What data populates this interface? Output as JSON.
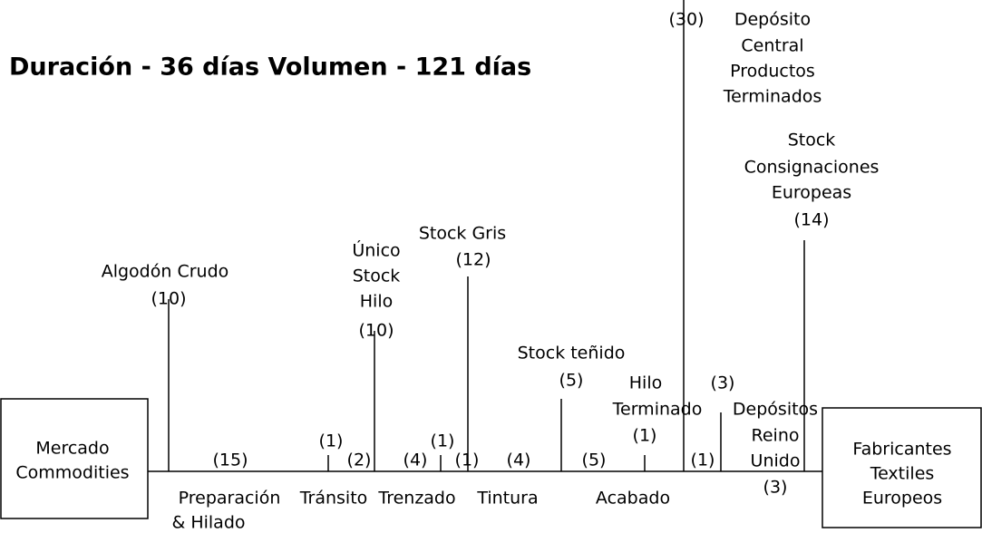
{
  "title": "Duración - 36 días  Volumen - 121 días",
  "source": [
    "Mercado",
    "Commodities"
  ],
  "destination": [
    "Fabricantes",
    "Textiles",
    "Europeos"
  ],
  "stocks": [
    {
      "lines": [
        "Algodón Crudo",
        "(10)"
      ]
    },
    {
      "lines": [
        "Único",
        "Stock",
        "Hilo",
        "(10)"
      ]
    },
    {
      "lines": [
        "Stock Gris",
        "(12)"
      ]
    },
    {
      "lines": [
        "Stock teñido",
        "(5)"
      ]
    },
    {
      "lines": [
        "Hilo",
        "Terminado",
        "(1)"
      ]
    },
    {
      "lines": [
        "(30)",
        "Depósito",
        "Central",
        "Productos",
        "Terminados"
      ]
    },
    {
      "lines": [
        "(3)",
        "Depósitos",
        "Reino",
        "Unido",
        "(3)"
      ]
    },
    {
      "lines": [
        "Stock",
        "Consignaciones",
        "Europeas",
        "(14)"
      ]
    }
  ],
  "durations": [
    "(15)",
    "(1)",
    "(2)",
    "(4)",
    "(1)",
    "(1)",
    "(4)",
    "(5)",
    "(1)"
  ],
  "stages": [
    [
      "Preparación",
      "& Hilado"
    ],
    [
      "Tránsito"
    ],
    [
      "Trenzado"
    ],
    [
      "Tintura"
    ],
    [
      "Acabado"
    ]
  ]
}
